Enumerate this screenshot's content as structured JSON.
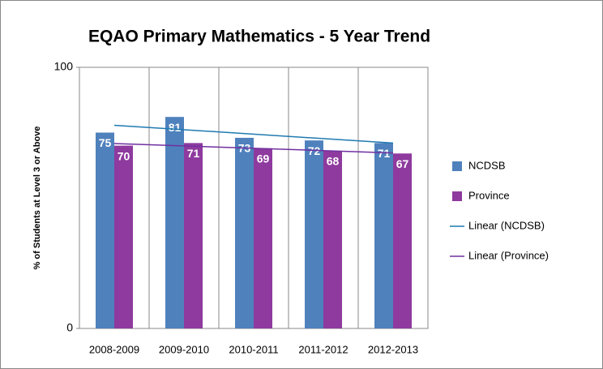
{
  "chart_data": {
    "type": "bar",
    "title": "EQAO Primary Mathematics - 5 Year Trend",
    "y_label": "% of Students at Level 3 or Above",
    "categories": [
      "2008-2009",
      "2009-2010",
      "2010-2011",
      "2011-2012",
      "2012-2013"
    ],
    "series": [
      {
        "name": "NCDSB",
        "color": "#4f81bd",
        "values": [
          75,
          81,
          73,
          72,
          71
        ]
      },
      {
        "name": "Province",
        "color": "#8e3a9e",
        "values": [
          70,
          71,
          69,
          68,
          67
        ]
      }
    ],
    "trendlines": [
      {
        "name": "Linear (NCDSB)",
        "color": "#1f7ab0",
        "series": 0
      },
      {
        "name": "Linear (Province)",
        "color": "#7030a0",
        "series": 1
      }
    ],
    "ylim": [
      0,
      100
    ],
    "yticks": [
      0,
      100
    ],
    "legend": "right"
  }
}
